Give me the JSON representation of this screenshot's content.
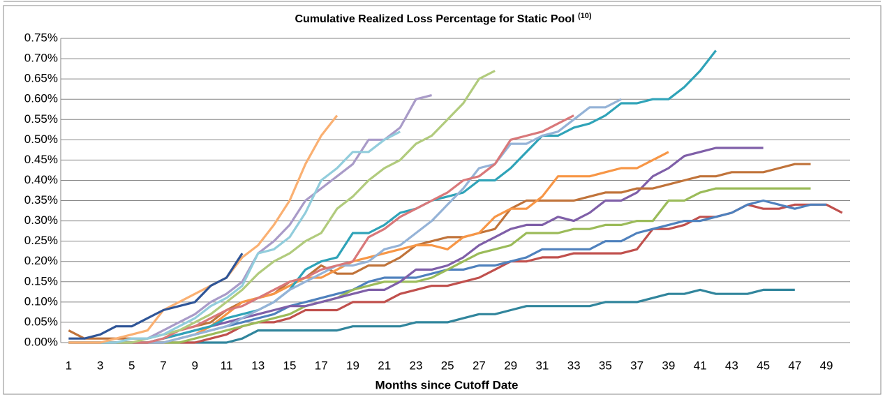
{
  "chart_data": {
    "type": "line",
    "title": "Cumulative Realized Loss Percentage for Static Pool",
    "title_superscript": "(10)",
    "x_label": "Months since Cutoff Date",
    "categories": [
      1,
      null,
      3,
      null,
      5,
      null,
      7,
      null,
      9,
      null,
      11,
      null,
      13,
      null,
      15,
      null,
      17,
      null,
      19,
      null,
      21,
      null,
      23,
      null,
      25,
      null,
      27,
      null,
      29,
      null,
      31,
      null,
      33,
      null,
      35,
      null,
      37,
      null,
      39,
      null,
      41,
      null,
      43,
      null,
      45,
      null,
      47,
      null,
      49,
      null
    ],
    "ylim": [
      0,
      0.75
    ],
    "yticks": [
      {
        "value": 0,
        "label": "0.00%"
      },
      {
        "value": 0.05,
        "label": "0.05%"
      },
      {
        "value": 0.1,
        "label": "0.10%"
      },
      {
        "value": 0.15,
        "label": "0.15%"
      },
      {
        "value": 0.2,
        "label": "0.20%"
      },
      {
        "value": 0.25,
        "label": "0.25%"
      },
      {
        "value": 0.3,
        "label": "0.30%"
      },
      {
        "value": 0.35,
        "label": "0.35%"
      },
      {
        "value": 0.4,
        "label": "0.40%"
      },
      {
        "value": 0.45,
        "label": "0.45%"
      },
      {
        "value": 0.5,
        "label": "0.50%"
      },
      {
        "value": 0.55,
        "label": "0.55%"
      },
      {
        "value": 0.6,
        "label": "0.60%"
      },
      {
        "value": 0.65,
        "label": "0.65%"
      },
      {
        "value": 0.7,
        "label": "0.70%"
      },
      {
        "value": 0.75,
        "label": "0.75%"
      }
    ],
    "grid": true,
    "series": [
      {
        "color": "#31859c",
        "values": [
          0,
          0,
          0,
          0,
          0,
          0,
          0,
          0,
          0,
          0,
          0,
          0.01,
          0.03,
          0.03,
          0.03,
          0.03,
          0.03,
          0.03,
          0.04,
          0.04,
          0.04,
          0.04,
          0.05,
          0.05,
          0.05,
          0.06,
          0.07,
          0.07,
          0.08,
          0.09,
          0.09,
          0.09,
          0.09,
          0.09,
          0.1,
          0.1,
          0.1,
          0.11,
          0.12,
          0.12,
          0.13,
          0.12,
          0.12,
          0.12,
          0.13,
          0.13,
          0.13,
          null,
          null,
          null
        ]
      },
      {
        "color": "#c0504d",
        "values": [
          0,
          0,
          0,
          0,
          0,
          0,
          0,
          0,
          0,
          0.01,
          0.02,
          0.04,
          0.05,
          0.05,
          0.06,
          0.08,
          0.08,
          0.08,
          0.1,
          0.1,
          0.1,
          0.12,
          0.13,
          0.14,
          0.14,
          0.15,
          0.16,
          0.18,
          0.2,
          0.2,
          0.21,
          0.21,
          0.22,
          0.22,
          0.22,
          0.22,
          0.23,
          0.28,
          0.28,
          0.29,
          0.31,
          0.31,
          0.32,
          0.34,
          0.33,
          0.33,
          0.34,
          0.34,
          0.34,
          0.32
        ]
      },
      {
        "color": "#4f81bd",
        "values": [
          0,
          0,
          0,
          0,
          0,
          0,
          0,
          0.01,
          0.02,
          0.03,
          0.04,
          0.05,
          0.06,
          0.07,
          0.09,
          0.1,
          0.11,
          0.12,
          0.13,
          0.15,
          0.16,
          0.16,
          0.16,
          0.17,
          0.18,
          0.18,
          0.19,
          0.19,
          0.2,
          0.21,
          0.23,
          0.23,
          0.23,
          0.23,
          0.25,
          0.25,
          0.27,
          0.28,
          0.29,
          0.3,
          0.3,
          0.31,
          0.32,
          0.34,
          0.35,
          0.34,
          0.33,
          0.34,
          0.34,
          null
        ]
      },
      {
        "color": "#9bbb59",
        "values": [
          0,
          0,
          0,
          0,
          0,
          0,
          0,
          0,
          0.01,
          0.02,
          0.03,
          0.04,
          0.05,
          0.06,
          0.07,
          0.09,
          0.1,
          0.11,
          0.13,
          0.14,
          0.15,
          0.15,
          0.15,
          0.16,
          0.18,
          0.2,
          0.22,
          0.23,
          0.24,
          0.27,
          0.27,
          0.27,
          0.28,
          0.28,
          0.29,
          0.29,
          0.3,
          0.3,
          0.35,
          0.35,
          0.37,
          0.38,
          0.38,
          0.38,
          0.38,
          0.38,
          0.38,
          0.38,
          null,
          null
        ]
      },
      {
        "color": "#7f5fa8",
        "values": [
          0,
          0,
          0,
          0,
          0,
          0,
          0.01,
          0.02,
          0.03,
          0.04,
          0.05,
          0.06,
          0.07,
          0.08,
          0.09,
          0.09,
          0.1,
          0.11,
          0.12,
          0.13,
          0.13,
          0.15,
          0.18,
          0.18,
          0.19,
          0.21,
          0.24,
          0.26,
          0.28,
          0.29,
          0.29,
          0.31,
          0.3,
          0.32,
          0.35,
          0.35,
          0.37,
          0.41,
          0.43,
          0.46,
          0.47,
          0.48,
          0.48,
          0.48,
          0.48,
          null,
          null,
          null,
          null,
          null
        ]
      },
      {
        "color": "#c0733a",
        "values": [
          0.03,
          0.01,
          0.01,
          0.01,
          0.01,
          0.01,
          0.02,
          0.03,
          0.04,
          0.05,
          0.08,
          0.1,
          0.11,
          0.12,
          0.15,
          0.16,
          0.19,
          0.17,
          0.17,
          0.19,
          0.19,
          0.21,
          0.24,
          0.25,
          0.26,
          0.26,
          0.27,
          0.28,
          0.33,
          0.35,
          0.35,
          0.35,
          0.35,
          0.36,
          0.37,
          0.37,
          0.38,
          0.38,
          0.39,
          0.4,
          0.41,
          0.41,
          0.42,
          0.42,
          0.42,
          0.43,
          0.44,
          0.44,
          null,
          null
        ]
      },
      {
        "color": "#f79646",
        "values": [
          0,
          0,
          0,
          0,
          0,
          0,
          0,
          0.01,
          0.02,
          0.04,
          0.07,
          0.1,
          0.11,
          0.12,
          0.14,
          0.16,
          0.16,
          0.18,
          0.2,
          0.21,
          0.22,
          0.23,
          0.24,
          0.24,
          0.23,
          0.26,
          0.27,
          0.31,
          0.33,
          0.33,
          0.36,
          0.41,
          0.41,
          0.41,
          0.42,
          0.43,
          0.43,
          0.45,
          0.47,
          null,
          null,
          null,
          null,
          null,
          null,
          null,
          null,
          null,
          null,
          null
        ]
      },
      {
        "color": "#2fa3b8",
        "values": [
          0,
          0,
          0,
          0,
          0,
          0,
          0.01,
          0.02,
          0.03,
          0.04,
          0.06,
          0.07,
          0.08,
          0.1,
          0.13,
          0.18,
          0.2,
          0.21,
          0.27,
          0.27,
          0.29,
          0.32,
          0.33,
          0.35,
          0.36,
          0.37,
          0.4,
          0.4,
          0.43,
          0.47,
          0.51,
          0.51,
          0.53,
          0.54,
          0.56,
          0.59,
          0.59,
          0.6,
          0.6,
          0.63,
          0.67,
          0.72,
          null,
          null,
          null,
          null,
          null,
          null,
          null,
          null
        ]
      },
      {
        "color": "#95b3d7",
        "values": [
          0,
          0,
          0,
          0,
          0,
          0,
          0,
          0.01,
          0.02,
          0.03,
          0.04,
          0.06,
          0.08,
          0.1,
          0.13,
          0.15,
          0.17,
          0.19,
          0.19,
          0.2,
          0.23,
          0.24,
          0.27,
          0.3,
          0.34,
          0.38,
          0.43,
          0.44,
          0.49,
          0.49,
          0.51,
          0.52,
          0.55,
          0.58,
          0.58,
          0.6,
          null,
          null,
          null,
          null,
          null,
          null,
          null,
          null,
          null,
          null,
          null,
          null,
          null,
          null
        ]
      },
      {
        "color": "#d9787a",
        "values": [
          0,
          0,
          0,
          0,
          0,
          0,
          0.01,
          0.03,
          0.04,
          0.06,
          0.08,
          0.09,
          0.11,
          0.13,
          0.15,
          0.16,
          0.18,
          0.19,
          0.2,
          0.26,
          0.28,
          0.31,
          0.33,
          0.35,
          0.37,
          0.4,
          0.41,
          0.44,
          0.5,
          0.51,
          0.52,
          0.54,
          0.56,
          null,
          null,
          null,
          null,
          null,
          null,
          null,
          null,
          null,
          null,
          null,
          null,
          null,
          null,
          null,
          null,
          null
        ]
      },
      {
        "color": "#b1cb7d",
        "values": [
          0,
          0,
          0,
          0,
          0,
          0.01,
          0.02,
          0.03,
          0.05,
          0.07,
          0.1,
          0.13,
          0.17,
          0.2,
          0.22,
          0.25,
          0.27,
          0.33,
          0.36,
          0.4,
          0.43,
          0.45,
          0.49,
          0.51,
          0.55,
          0.59,
          0.65,
          0.67,
          null,
          null,
          null,
          null,
          null,
          null,
          null,
          null,
          null,
          null,
          null,
          null,
          null,
          null,
          null,
          null,
          null,
          null,
          null,
          null,
          null,
          null
        ]
      },
      {
        "color": "#a99bc8",
        "values": [
          0,
          0,
          0,
          0,
          0.01,
          0.01,
          0.03,
          0.05,
          0.07,
          0.1,
          0.12,
          0.15,
          0.22,
          0.25,
          0.29,
          0.35,
          0.38,
          0.41,
          0.44,
          0.5,
          0.5,
          0.53,
          0.6,
          0.61,
          null,
          null,
          null,
          null,
          null,
          null,
          null,
          null,
          null,
          null,
          null,
          null,
          null,
          null,
          null,
          null,
          null,
          null,
          null,
          null,
          null,
          null,
          null,
          null,
          null,
          null
        ]
      },
      {
        "color": "#92cddc",
        "values": [
          0,
          0,
          0,
          0,
          0.01,
          0.01,
          0.02,
          0.04,
          0.06,
          0.09,
          0.11,
          0.14,
          0.22,
          0.23,
          0.26,
          0.32,
          0.4,
          0.43,
          0.47,
          0.47,
          0.5,
          0.52,
          null,
          null,
          null,
          null,
          null,
          null,
          null,
          null,
          null,
          null,
          null,
          null,
          null,
          null,
          null,
          null,
          null,
          null,
          null,
          null,
          null,
          null,
          null,
          null,
          null,
          null,
          null,
          null
        ]
      },
      {
        "color": "#fab072",
        "values": [
          0,
          0,
          0,
          0.01,
          0.02,
          0.03,
          0.08,
          0.1,
          0.12,
          0.14,
          0.16,
          0.21,
          0.24,
          0.29,
          0.35,
          0.44,
          0.51,
          0.56,
          null,
          null,
          null,
          null,
          null,
          null,
          null,
          null,
          null,
          null,
          null,
          null,
          null,
          null,
          null,
          null,
          null,
          null,
          null,
          null,
          null,
          null,
          null,
          null,
          null,
          null,
          null,
          null,
          null,
          null,
          null,
          null
        ]
      },
      {
        "color": "#2f5597",
        "values": [
          0.01,
          0.01,
          0.02,
          0.04,
          0.04,
          0.06,
          0.08,
          0.09,
          0.1,
          0.14,
          0.16,
          0.22,
          null,
          null,
          null,
          null,
          null,
          null,
          null,
          null,
          null,
          null,
          null,
          null,
          null,
          null,
          null,
          null,
          null,
          null,
          null,
          null,
          null,
          null,
          null,
          null,
          null,
          null,
          null,
          null,
          null,
          null,
          null,
          null,
          null,
          null,
          null,
          null,
          null,
          null
        ]
      }
    ]
  }
}
